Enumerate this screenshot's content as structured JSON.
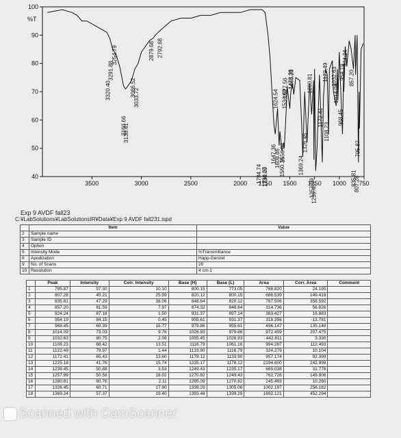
{
  "chart_data": {
    "type": "line",
    "ylabel": "%T",
    "xlabel": "cm-1",
    "xlim": [
      4000,
      750
    ],
    "ylim": [
      40,
      100
    ],
    "xticks": [
      3500,
      3000,
      2500,
      2000,
      1750,
      1500,
      1250,
      1000,
      750
    ],
    "yticks": [
      40,
      50,
      60,
      70,
      80,
      90,
      100
    ],
    "series": [
      {
        "x": [
          3950,
          3800,
          3700,
          3650,
          3600,
          3550,
          3500,
          3450,
          3400,
          3350,
          3320,
          3290,
          3254,
          3220,
          3180,
          3160,
          3136,
          3100,
          3066,
          3033,
          3000,
          2960,
          2920,
          2880,
          2860,
          2800,
          2700,
          2600,
          2500,
          2400,
          2300,
          2200,
          2100,
          2000,
          1900,
          1820,
          1780,
          1750,
          1720,
          1700,
          1680,
          1660,
          1647,
          1640,
          1624,
          1608,
          1600,
          1580,
          1560,
          1556,
          1534,
          1527,
          1500,
          1490,
          1473,
          1466,
          1460,
          1440,
          1400,
          1380,
          1369,
          1350,
          1326,
          1300,
          1280,
          1260,
          1257,
          1250,
          1239,
          1225,
          1200,
          1172,
          1160,
          1140,
          1122,
          1108,
          1100,
          1070,
          1060,
          1032,
          1020,
          1014,
          1000,
          968,
          955,
          954,
          940,
          924,
          900,
          880,
          857,
          840,
          835,
          820,
          807,
          800,
          796,
          780,
          760
        ],
        "y": [
          98,
          99,
          98,
          97,
          95,
          95,
          94,
          93,
          92,
          91,
          89,
          85,
          83,
          79,
          72,
          71,
          72,
          74,
          78,
          80,
          84,
          86,
          88,
          89,
          90,
          92,
          95,
          96,
          96,
          97,
          97,
          98,
          98,
          98,
          99,
          99,
          99,
          98,
          90,
          82,
          70,
          58,
          55,
          58,
          64,
          51,
          56,
          49,
          52,
          50,
          65,
          72,
          64,
          70,
          73,
          71,
          69,
          75,
          74,
          58,
          47,
          70,
          52,
          73,
          62,
          74,
          46,
          78,
          42,
          50,
          76,
          45,
          68,
          78,
          76,
          55,
          78,
          81,
          70,
          65,
          78,
          67,
          84,
          55,
          80,
          70,
          86,
          79,
          88,
          85,
          78,
          90,
          76,
          90,
          45,
          70,
          57,
          85,
          87
        ]
      }
    ],
    "peak_labels": [
      "3320.40",
      "3291.88",
      "3254.79",
      "3160.66",
      "3136.41",
      "3066.52",
      "3033.72",
      "2879.68",
      "2792.68",
      "1647.36",
      "1624.54",
      "1608.86",
      "1560.36",
      "1556.08",
      "1534.69",
      "1527.56",
      "1473.36",
      "1466.23",
      "1369.24",
      "1326.45",
      "1280.81",
      "1257.99",
      "1239.45",
      "1172.41",
      "1122.49",
      "1108.23",
      "1032.63",
      "1014.09",
      "968.45",
      "954.19",
      "924.24",
      "857.20",
      "835.81",
      "807.28",
      "795.87",
      "1794.74",
      "1736.27",
      "1732.00"
    ],
    "peak_label_positions": [
      [
        3320,
        66.9
      ],
      [
        3291,
        73.9
      ],
      [
        3254,
        79.4
      ],
      [
        3160,
        54.4
      ],
      [
        3136,
        51.9
      ],
      [
        3066,
        67.9
      ],
      [
        3033,
        64.4
      ],
      [
        2879,
        80.9
      ],
      [
        2792,
        81.9
      ],
      [
        1647,
        44.4
      ],
      [
        1624,
        63.9
      ],
      [
        1608,
        42.9
      ],
      [
        1560,
        39.9
      ],
      [
        1556,
        44.9
      ],
      [
        1534,
        63.9
      ],
      [
        1527,
        67.9
      ],
      [
        1473,
        70.9
      ],
      [
        1466,
        70.9
      ],
      [
        1369,
        40.4
      ],
      [
        1326,
        48.4
      ],
      [
        1280,
        69.4
      ],
      [
        1257,
        32.4
      ],
      [
        1239,
        30.4
      ],
      [
        1172,
        57.4
      ],
      [
        1122,
        73.4
      ],
      [
        1108,
        52.4
      ],
      [
        1032,
        71.9
      ],
      [
        1014,
        65.9
      ],
      [
        968,
        57.9
      ],
      [
        954,
        73.9
      ],
      [
        924,
        78.9
      ],
      [
        857,
        71.9
      ],
      [
        835,
        36.4
      ],
      [
        807,
        34.4
      ],
      [
        795,
        46.9
      ],
      [
        1794,
        37.4
      ],
      [
        1736,
        36.4
      ],
      [
        1732,
        36.4
      ]
    ]
  },
  "spectrum_caption": {
    "title": "Exp 9 AVDF fall23",
    "path": "C:¥LabSolutions¥LabSolutionsIR¥Data¥Exp 9 AVDF fall231.ispd"
  },
  "info_table": {
    "header_item": "Item",
    "header_value": "Value",
    "rows": [
      {
        "num": "2",
        "item": "Sample name",
        "value": ""
      },
      {
        "num": "3",
        "item": "Sample ID",
        "value": ""
      },
      {
        "num": "4",
        "item": "Option",
        "value": ""
      },
      {
        "num": "5",
        "item": "Intensity Mode",
        "value": "%Transmittance"
      },
      {
        "num": "6",
        "item": "Apodization",
        "value": "Happ-Genzel"
      },
      {
        "num": "9",
        "item": "No. of Scans",
        "value": "20"
      },
      {
        "num": "10",
        "item": "Resolution",
        "value": "4 cm-1"
      }
    ]
  },
  "peak_table": {
    "headers": [
      "Peak",
      "Intensity",
      "Corr. Intensity",
      "Base (H)",
      "Base (L)",
      "Area",
      "Corr. Area",
      "Comment"
    ],
    "rows": [
      [
        "1",
        "795.87",
        "57.30",
        "10.10",
        "800.15",
        "773.05",
        "768.820",
        "24.195",
        ""
      ],
      [
        "2",
        "807.28",
        "45.21",
        "25.59",
        "820.12",
        "800.15",
        "686.539",
        "149.418",
        ""
      ],
      [
        "3",
        "835.81",
        "47.29",
        "38.06",
        "848.64",
        "820.12",
        "787.506",
        "358.592",
        ""
      ],
      [
        "4",
        "857.20",
        "81.59",
        "7.97",
        "874.32",
        "848.64",
        "314.736",
        "56.826",
        ""
      ],
      [
        "5",
        "924.24",
        "87.18",
        "1.50",
        "931.37",
        "897.14",
        "383.427",
        "16.883",
        ""
      ],
      [
        "6",
        "954.19",
        "84.15",
        "0.45",
        "955.61",
        "931.37",
        "318.356",
        "-13.781",
        ""
      ],
      [
        "7",
        "968.45",
        "69.39",
        "15.77",
        "979.86",
        "955.61",
        "496.147",
        "135.148",
        ""
      ],
      [
        "8",
        "1014.09",
        "73.03",
        "9.76",
        "1026.93",
        "979.86",
        "972.459",
        "207.475",
        ""
      ],
      [
        "9",
        "1032.63",
        "80.75",
        "2.08",
        "1055.45",
        "1026.93",
        "442.811",
        "3.330",
        ""
      ],
      [
        "10",
        "1108.23",
        "68.42",
        "13.51",
        "1116.79",
        "1061.16",
        "994.287",
        "112.493",
        ""
      ],
      [
        "11",
        "1122.49",
        "79.97",
        "1.44",
        "1133.90",
        "1116.79",
        "324.279",
        "10.104",
        ""
      ],
      [
        "12",
        "1172.41",
        "65.43",
        "13.60",
        "1178.12",
        "1133.90",
        "957.174",
        "92.399",
        ""
      ],
      [
        "13",
        "1225.18",
        "41.76",
        "15.74",
        "1235.17",
        "1178.12",
        "2194.600",
        "242.998",
        ""
      ],
      [
        "14",
        "1239.45",
        "50.88",
        "3.53",
        "1249.43",
        "1235.17",
        "669.038",
        "31.778",
        ""
      ],
      [
        "15",
        "1257.99",
        "50.58",
        "18.02",
        "1270.82",
        "1249.43",
        "762.726",
        "149.906",
        ""
      ],
      [
        "16",
        "1280.81",
        "80.76",
        "2.11",
        "1285.09",
        "1270.82",
        "245.493",
        "10.260",
        ""
      ],
      [
        "17",
        "1326.45",
        "60.71",
        "17.90",
        "1339.29",
        "1305.06",
        "1002.197",
        "256.182",
        ""
      ],
      [
        "18",
        "1369.24",
        "57.37",
        "19.40",
        "1393.48",
        "1339.29",
        "1692.121",
        "452.294",
        ""
      ]
    ]
  },
  "watermark": {
    "text": "Scanned with CamScanner"
  }
}
